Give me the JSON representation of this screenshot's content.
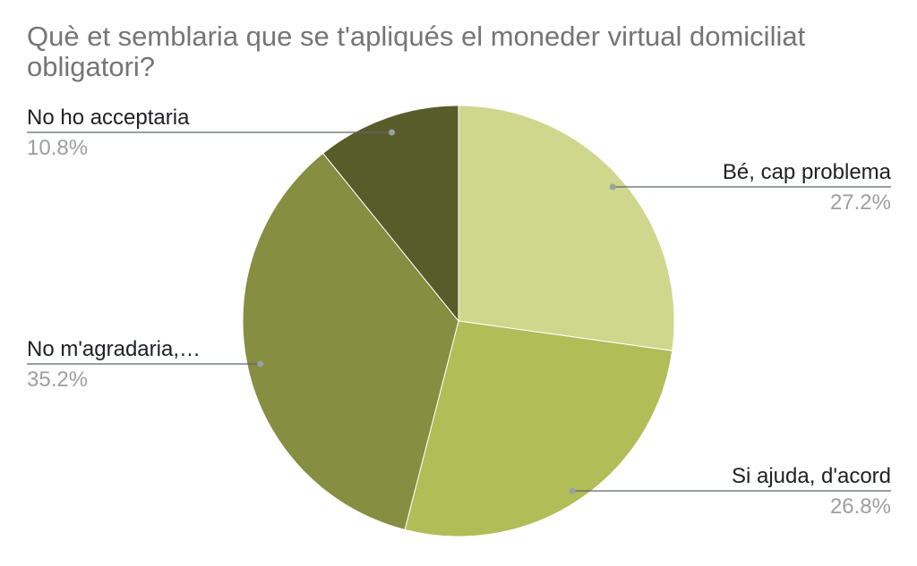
{
  "chart_data": {
    "type": "pie",
    "title": "Què et semblaria que se t'apliqués el moneder virtual domiciliat obligatori?",
    "slices": [
      {
        "label": "Bé, cap problema",
        "percent_label": "27.2%",
        "value": 27.2,
        "color": "#cfd78d"
      },
      {
        "label": "Si ajuda, d'acord",
        "percent_label": "26.8%",
        "value": 26.8,
        "color": "#b1bd57"
      },
      {
        "label": "No m'agradaria,…",
        "percent_label": "35.2%",
        "value": 35.2,
        "color": "#858e41"
      },
      {
        "label": "No ho acceptaria",
        "percent_label": "10.8%",
        "value": 10.8,
        "color": "#575d2a"
      }
    ],
    "start_angle": "12 o'clock",
    "direction": "clockwise",
    "legend": "none"
  }
}
